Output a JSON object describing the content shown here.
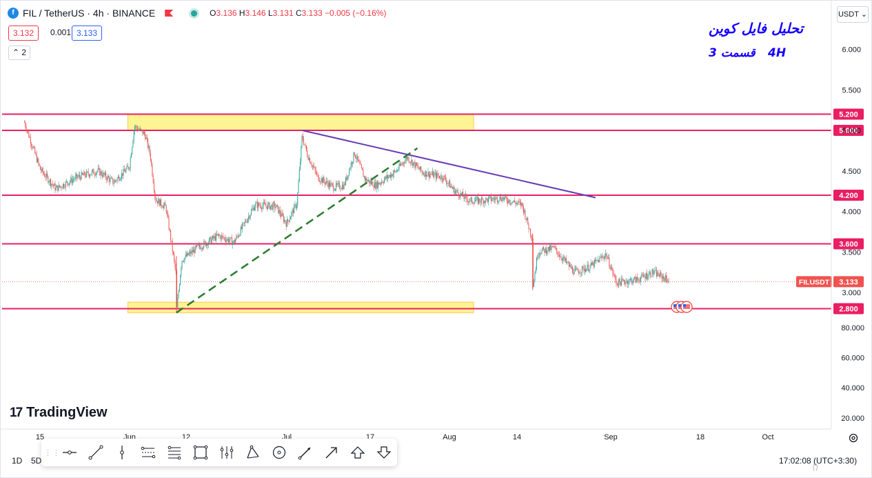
{
  "header": {
    "symbol": "FIL / TetherUS · 4h · BINANCE",
    "open_label": "O",
    "open": "3.136",
    "high_label": "H",
    "high": "3.146",
    "low_label": "L",
    "low": "3.131",
    "close_label": "C",
    "close": "3.133",
    "change": "−0.005 (−0.16%)",
    "sell_price": "3.132",
    "spread": "0.001",
    "buy_price": "3.133",
    "indicator_count": "2",
    "currency": "USDT",
    "currency_arrow": "⌄",
    "collapse_arrow": "⌃"
  },
  "annotations": {
    "title": "تحلیل فایل کوین",
    "part": "قسمت 3",
    "timeframe": "4H"
  },
  "branding": {
    "name": "TradingView",
    "mark": "17"
  },
  "bottom_bar": {
    "timeframe_1d": "1D",
    "timeframe_5d": "5D",
    "clock": "17:02:08 (UTC+3:30)"
  },
  "drawing_toolbar": {
    "tools": [
      "horizontal-ray-icon",
      "trend-line-icon",
      "vertical-line-icon",
      "parallel-channel-icon",
      "fib-retracement-icon",
      "rectangle-icon",
      "pitchfork-icon",
      "triangle-icon",
      "circle-icon",
      "brush-icon",
      "arrow-icon",
      "arrow-up-icon",
      "arrow-down-icon"
    ]
  },
  "colors": {
    "up": "#26a69a",
    "down": "#ef5350",
    "level": "#e91e63",
    "zone": "#ffeb3b",
    "trendline": "#673ab7",
    "support_trend": "#2e7d32",
    "axis_text": "#131722",
    "annotation": "#1500ff"
  },
  "chart_data": {
    "type": "candlestick",
    "symbol": "FILUSDT",
    "last_price": "3.133",
    "y_axis_ticks": [
      "6.000",
      "5.500",
      "5.000",
      "4.500",
      "4.000",
      "3.500",
      "3.000"
    ],
    "y_axis_ticks_lower": [
      "80.000",
      "60.000",
      "40.000",
      "20.000"
    ],
    "x_axis_ticks": [
      "15",
      "Jun",
      "12",
      "Jul",
      "17",
      "Aug",
      "14",
      "Sep",
      "18",
      "Oct"
    ],
    "levels": [
      {
        "label": "5.200",
        "value": 5.2
      },
      {
        "label": "5.000",
        "value": 5.0
      },
      {
        "label": "4.200",
        "value": 4.2
      },
      {
        "label": "3.600",
        "value": 3.6
      },
      {
        "label": "2.800",
        "value": 2.8
      }
    ],
    "zones": [
      {
        "from_date": "2023-06-01",
        "to_date": "2023-08-06",
        "low": 5.0,
        "high": 5.2
      },
      {
        "from_date": "2023-06-01",
        "to_date": "2023-08-06",
        "low": 2.75,
        "high": 2.88
      }
    ],
    "resistance_trendline": {
      "start": {
        "date": "2023-07-04",
        "price": 5.0
      },
      "end": {
        "date": "2023-08-29",
        "price": 4.17
      }
    },
    "support_trendline": {
      "start": {
        "date": "2023-06-10",
        "price": 2.75
      },
      "end": {
        "date": "2023-07-26",
        "price": 4.78
      }
    },
    "price_path": [
      {
        "date": "2023-05-12",
        "price": 5.1
      },
      {
        "date": "2023-05-15",
        "price": 4.52
      },
      {
        "date": "2023-05-18",
        "price": 4.28
      },
      {
        "date": "2023-05-22",
        "price": 4.42
      },
      {
        "date": "2023-05-26",
        "price": 4.5
      },
      {
        "date": "2023-05-29",
        "price": 4.36
      },
      {
        "date": "2023-06-01",
        "price": 4.55
      },
      {
        "date": "2023-06-02",
        "price": 5.05
      },
      {
        "date": "2023-06-04",
        "price": 4.95
      },
      {
        "date": "2023-06-05",
        "price": 4.7
      },
      {
        "date": "2023-06-06",
        "price": 4.15
      },
      {
        "date": "2023-06-08",
        "price": 4.05
      },
      {
        "date": "2023-06-10",
        "price": 3.2
      },
      {
        "date": "2023-06-10",
        "price": 2.75
      },
      {
        "date": "2023-06-11",
        "price": 3.4
      },
      {
        "date": "2023-06-14",
        "price": 3.55
      },
      {
        "date": "2023-06-18",
        "price": 3.7
      },
      {
        "date": "2023-06-21",
        "price": 3.62
      },
      {
        "date": "2023-06-25",
        "price": 4.08
      },
      {
        "date": "2023-06-29",
        "price": 4.06
      },
      {
        "date": "2023-07-01",
        "price": 3.85
      },
      {
        "date": "2023-07-03",
        "price": 4.1
      },
      {
        "date": "2023-07-04",
        "price": 4.93
      },
      {
        "date": "2023-07-05",
        "price": 4.7
      },
      {
        "date": "2023-07-07",
        "price": 4.42
      },
      {
        "date": "2023-07-10",
        "price": 4.3
      },
      {
        "date": "2023-07-12",
        "price": 4.32
      },
      {
        "date": "2023-07-14",
        "price": 4.72
      },
      {
        "date": "2023-07-16",
        "price": 4.4
      },
      {
        "date": "2023-07-18",
        "price": 4.32
      },
      {
        "date": "2023-07-22",
        "price": 4.5
      },
      {
        "date": "2023-07-24",
        "price": 4.67
      },
      {
        "date": "2023-07-27",
        "price": 4.48
      },
      {
        "date": "2023-07-31",
        "price": 4.42
      },
      {
        "date": "2023-08-02",
        "price": 4.26
      },
      {
        "date": "2023-08-05",
        "price": 4.13
      },
      {
        "date": "2023-08-08",
        "price": 4.14
      },
      {
        "date": "2023-08-11",
        "price": 4.17
      },
      {
        "date": "2023-08-15",
        "price": 4.08
      },
      {
        "date": "2023-08-17",
        "price": 3.65
      },
      {
        "date": "2023-08-17",
        "price": 3.05
      },
      {
        "date": "2023-08-18",
        "price": 3.5
      },
      {
        "date": "2023-08-21",
        "price": 3.55
      },
      {
        "date": "2023-08-25",
        "price": 3.25
      },
      {
        "date": "2023-08-28",
        "price": 3.32
      },
      {
        "date": "2023-08-31",
        "price": 3.47
      },
      {
        "date": "2023-09-02",
        "price": 3.12
      },
      {
        "date": "2023-09-06",
        "price": 3.16
      },
      {
        "date": "2023-09-09",
        "price": 3.25
      },
      {
        "date": "2023-09-12",
        "price": 3.15
      }
    ]
  }
}
